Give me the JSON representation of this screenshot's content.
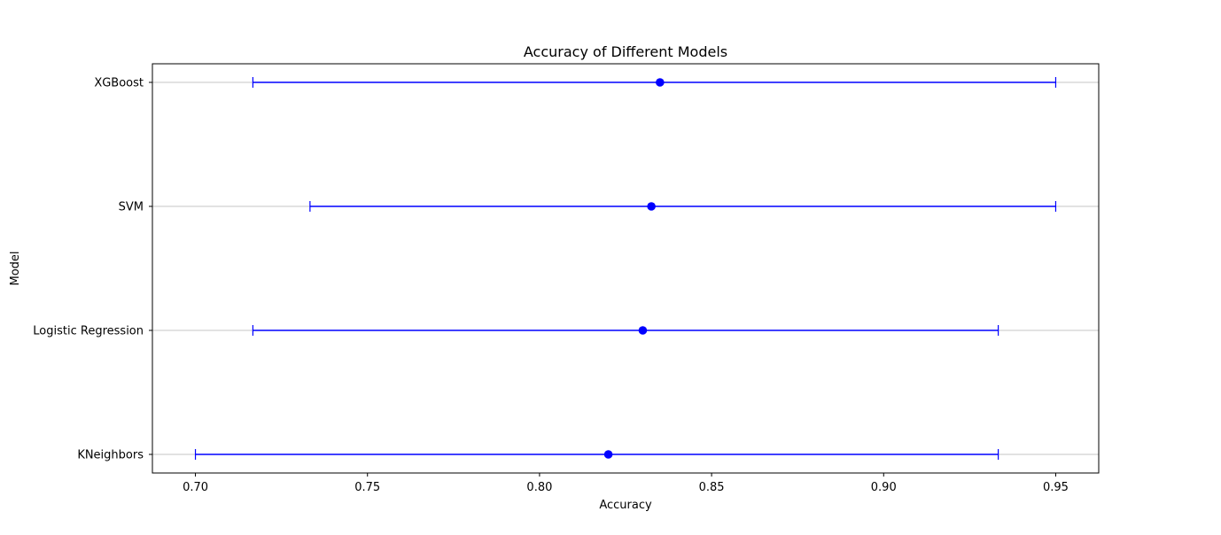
{
  "chart_data": {
    "type": "errorbar",
    "title": "Accuracy of Different Models",
    "xlabel": "Accuracy",
    "ylabel": "Model",
    "xlim": [
      0.6875,
      0.9625
    ],
    "xticks": [
      "0.70",
      "0.75",
      "0.80",
      "0.85",
      "0.90",
      "0.95"
    ],
    "xtick_values": [
      0.7,
      0.75,
      0.8,
      0.85,
      0.9,
      0.95
    ],
    "grid": "horizontal",
    "categories": [
      "KNeighbors",
      "Logistic Regression",
      "SVM",
      "XGBoost"
    ],
    "series": [
      {
        "mean": [
          0.82,
          0.83,
          0.8325,
          0.835
        ],
        "lower": [
          0.7,
          0.7167,
          0.7333,
          0.7167
        ],
        "upper": [
          0.9333,
          0.9333,
          0.95,
          0.95
        ]
      }
    ],
    "colors": {
      "series": "#0000ff",
      "grid": "#b0b0b0",
      "axes": "#000000"
    }
  }
}
